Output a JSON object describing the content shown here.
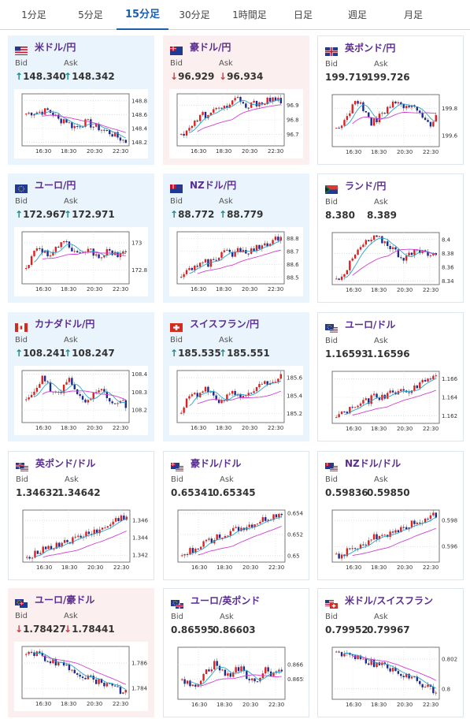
{
  "tabs": [
    "1分足",
    "5分足",
    "15分足",
    "30分足",
    "1時間足",
    "日足",
    "週足",
    "月足"
  ],
  "active_tab": 2,
  "labels": {
    "bid": "Bid",
    "ask": "Ask"
  },
  "colors": {
    "up_card": "#eaf4fc",
    "down_card": "#fcefef",
    "up_arrow": "#1a8a8a",
    "down_arrow": "#d23c3c",
    "candle_up": "#e02020",
    "candle_down": "#1a2a90",
    "ma_short": "#29a3c8",
    "ma_long": "#d040d0"
  },
  "cards": [
    {
      "pair": "米ドル/円",
      "flag": "us",
      "dir": "up",
      "bid_arrow": "↑",
      "ask_arrow": "↑",
      "bid": "148.340",
      "ask": "148.342",
      "chart_data": {
        "type": "candlestick",
        "x_ticks": [
          "16:30",
          "18:30",
          "20:30",
          "22:30"
        ],
        "y_ticks": [
          "148.8",
          "148.6",
          "148.4",
          "148.2"
        ],
        "ylim": [
          148.15,
          148.9
        ],
        "shape": [
          0.62,
          0.64,
          0.65,
          0.66,
          0.68,
          0.6,
          0.48,
          0.52,
          0.4,
          0.36,
          0.42,
          0.46,
          0.38,
          0.35,
          0.3,
          0.26,
          0.2,
          0.14,
          0.08
        ]
      }
    },
    {
      "pair": "豪ドル/円",
      "flag": "au",
      "dir": "down",
      "bid_arrow": "↓",
      "ask_arrow": "↓",
      "bid": "96.929",
      "ask": "96.934",
      "chart_data": {
        "type": "candlestick",
        "x_ticks": [
          "16:30",
          "18:30",
          "20:30",
          "22:30"
        ],
        "y_ticks": [
          "96.9",
          "96.8",
          "96.7"
        ],
        "ylim": [
          96.62,
          96.98
        ],
        "shape": [
          0.2,
          0.32,
          0.4,
          0.5,
          0.62,
          0.55,
          0.68,
          0.8,
          0.72,
          0.84,
          0.9,
          0.78,
          0.74,
          0.8,
          0.84,
          0.86,
          0.88,
          0.85,
          0.87
        ]
      }
    },
    {
      "pair": "英ポンド/円",
      "flag": "gb",
      "dir": "neutral",
      "bid_arrow": "",
      "ask_arrow": "",
      "bid": "199.719",
      "ask": "199.726",
      "chart_data": {
        "type": "candlestick",
        "x_ticks": [
          "16:30",
          "18:30",
          "20:30",
          "22:30"
        ],
        "y_ticks": [
          "199.8",
          "199.6"
        ],
        "ylim": [
          199.52,
          199.9
        ],
        "shape": [
          0.3,
          0.4,
          0.62,
          0.8,
          0.9,
          0.7,
          0.45,
          0.5,
          0.62,
          0.7,
          0.8,
          0.85,
          0.78,
          0.72,
          0.82,
          0.6,
          0.5,
          0.45,
          0.55
        ]
      }
    },
    {
      "pair": "ユーロ/円",
      "flag": "eu",
      "dir": "up",
      "bid_arrow": "↑",
      "ask_arrow": "↑",
      "bid": "172.967",
      "ask": "172.971",
      "chart_data": {
        "type": "candlestick",
        "x_ticks": [
          "16:30",
          "18:30",
          "20:30",
          "22:30"
        ],
        "y_ticks": [
          "173",
          "172.8"
        ],
        "ylim": [
          172.7,
          173.08
        ],
        "shape": [
          0.35,
          0.5,
          0.72,
          0.66,
          0.55,
          0.6,
          0.78,
          0.82,
          0.6,
          0.55,
          0.52,
          0.7,
          0.6,
          0.5,
          0.58,
          0.62,
          0.55,
          0.6,
          0.58
        ]
      }
    },
    {
      "pair": "NZドル/円",
      "flag": "nz",
      "dir": "up",
      "bid_arrow": "↑",
      "ask_arrow": "↑",
      "bid": "88.772",
      "ask": "88.779",
      "chart_data": {
        "type": "candlestick",
        "x_ticks": [
          "16:30",
          "18:30",
          "20:30",
          "22:30"
        ],
        "y_ticks": [
          "88.8",
          "88.7",
          "88.6",
          "88.5"
        ],
        "ylim": [
          88.45,
          88.85
        ],
        "shape": [
          0.15,
          0.2,
          0.3,
          0.36,
          0.42,
          0.38,
          0.5,
          0.55,
          0.6,
          0.56,
          0.64,
          0.7,
          0.62,
          0.68,
          0.72,
          0.78,
          0.8,
          0.86,
          0.9
        ]
      }
    },
    {
      "pair": "ランド/円",
      "flag": "za",
      "dir": "neutral",
      "bid_arrow": "",
      "ask_arrow": "",
      "bid": "8.380",
      "ask": "8.389",
      "chart_data": {
        "type": "candlestick",
        "x_ticks": [
          "16:30",
          "18:30",
          "20:30",
          "22:30"
        ],
        "y_ticks": [
          "8.4",
          "8.38",
          "8.36",
          "8.34"
        ],
        "ylim": [
          8.335,
          8.41
        ],
        "shape": [
          0.1,
          0.2,
          0.32,
          0.5,
          0.66,
          0.78,
          0.84,
          0.9,
          0.86,
          0.8,
          0.72,
          0.6,
          0.52,
          0.56,
          0.6,
          0.64,
          0.62,
          0.6,
          0.6
        ]
      }
    },
    {
      "pair": "カナダドル/円",
      "flag": "ca",
      "dir": "up",
      "bid_arrow": "↑",
      "ask_arrow": "↑",
      "bid": "108.241",
      "ask": "108.247",
      "chart_data": {
        "type": "candlestick",
        "x_ticks": [
          "16:30",
          "18:30",
          "20:30",
          "22:30"
        ],
        "y_ticks": [
          "108.4",
          "108.3",
          "108.2"
        ],
        "ylim": [
          108.13,
          108.42
        ],
        "shape": [
          0.4,
          0.55,
          0.72,
          0.85,
          0.7,
          0.5,
          0.58,
          0.75,
          0.8,
          0.6,
          0.45,
          0.35,
          0.5,
          0.62,
          0.55,
          0.48,
          0.3,
          0.4,
          0.34
        ]
      }
    },
    {
      "pair": "スイスフラン/円",
      "flag": "ch",
      "dir": "up",
      "bid_arrow": "↑",
      "ask_arrow": "↑",
      "bid": "185.535",
      "ask": "185.551",
      "chart_data": {
        "type": "candlestick",
        "x_ticks": [
          "16:30",
          "18:30",
          "20:30",
          "22:30"
        ],
        "y_ticks": [
          "185.6",
          "185.4",
          "185.2"
        ],
        "ylim": [
          185.1,
          185.68
        ],
        "shape": [
          0.25,
          0.45,
          0.6,
          0.52,
          0.66,
          0.58,
          0.45,
          0.4,
          0.5,
          0.62,
          0.55,
          0.48,
          0.5,
          0.62,
          0.7,
          0.74,
          0.8,
          0.85,
          0.88
        ]
      }
    },
    {
      "pair": "ユーロ/ドル",
      "flag": "eu-us",
      "dir": "neutral",
      "bid_arrow": "",
      "ask_arrow": "",
      "bid": "1.16593",
      "ask": "1.16596",
      "chart_data": {
        "type": "candlestick",
        "x_ticks": [
          "16:30",
          "18:30",
          "20:30",
          "22:30"
        ],
        "y_ticks": [
          "1.166",
          "1.164",
          "1.162"
        ],
        "ylim": [
          1.1612,
          1.1668
        ],
        "shape": [
          0.15,
          0.18,
          0.25,
          0.3,
          0.36,
          0.4,
          0.45,
          0.52,
          0.5,
          0.55,
          0.6,
          0.62,
          0.58,
          0.64,
          0.7,
          0.76,
          0.8,
          0.86,
          0.9
        ]
      }
    },
    {
      "pair": "英ポンド/ドル",
      "flag": "gb-us",
      "dir": "neutral",
      "bid_arrow": "",
      "ask_arrow": "",
      "bid": "1.34632",
      "ask": "1.34642",
      "chart_data": {
        "type": "candlestick",
        "x_ticks": [
          "16:30",
          "18:30",
          "20:30",
          "22:30"
        ],
        "y_ticks": [
          "1.346",
          "1.344",
          "1.342"
        ],
        "ylim": [
          1.3412,
          1.3472
        ],
        "shape": [
          0.1,
          0.15,
          0.22,
          0.25,
          0.3,
          0.28,
          0.35,
          0.42,
          0.4,
          0.45,
          0.5,
          0.55,
          0.6,
          0.58,
          0.65,
          0.72,
          0.8,
          0.85,
          0.88
        ]
      }
    },
    {
      "pair": "豪ドル/ドル",
      "flag": "au-us",
      "dir": "neutral",
      "bid_arrow": "",
      "ask_arrow": "",
      "bid": "0.65341",
      "ask": "0.65345",
      "chart_data": {
        "type": "candlestick",
        "x_ticks": [
          "16:30",
          "18:30",
          "20:30",
          "22:30"
        ],
        "y_ticks": [
          "0.654",
          "0.652",
          "0.65"
        ],
        "ylim": [
          0.6494,
          0.6543
        ],
        "shape": [
          0.1,
          0.18,
          0.25,
          0.3,
          0.36,
          0.42,
          0.45,
          0.5,
          0.55,
          0.58,
          0.62,
          0.65,
          0.7,
          0.72,
          0.78,
          0.82,
          0.86,
          0.9,
          0.94
        ]
      }
    },
    {
      "pair": "NZドル/ドル",
      "flag": "nz-us",
      "dir": "neutral",
      "bid_arrow": "",
      "ask_arrow": "",
      "bid": "0.59836",
      "ask": "0.59850",
      "chart_data": {
        "type": "candlestick",
        "x_ticks": [
          "16:30",
          "18:30",
          "20:30",
          "22:30"
        ],
        "y_ticks": [
          "0.598",
          "0.596"
        ],
        "ylim": [
          0.5948,
          0.5988
        ],
        "shape": [
          0.1,
          0.15,
          0.2,
          0.28,
          0.32,
          0.38,
          0.42,
          0.48,
          0.55,
          0.52,
          0.6,
          0.64,
          0.66,
          0.7,
          0.75,
          0.8,
          0.84,
          0.88,
          0.92
        ]
      }
    },
    {
      "pair": "ユーロ/豪ドル",
      "flag": "eu-au",
      "dir": "down",
      "bid_arrow": "↓",
      "ask_arrow": "↓",
      "bid": "1.78427",
      "ask": "1.78441",
      "chart_data": {
        "type": "candlestick",
        "x_ticks": [
          "16:30",
          "18:30",
          "20:30",
          "22:30"
        ],
        "y_ticks": [
          "1.786",
          "1.784"
        ],
        "ylim": [
          1.7832,
          1.7873
        ],
        "shape": [
          0.9,
          0.86,
          0.84,
          0.78,
          0.74,
          0.72,
          0.66,
          0.6,
          0.56,
          0.5,
          0.46,
          0.4,
          0.38,
          0.32,
          0.28,
          0.24,
          0.2,
          0.16,
          0.12
        ]
      }
    },
    {
      "pair": "ユーロ/英ポンド",
      "flag": "eu-gb",
      "dir": "neutral",
      "bid_arrow": "",
      "ask_arrow": "",
      "bid": "0.86595",
      "ask": "0.86603",
      "chart_data": {
        "type": "candlestick",
        "x_ticks": [
          "16:30",
          "18:30",
          "20:30",
          "22:30"
        ],
        "y_ticks": [
          "0.866",
          "0.8655"
        ],
        "ylim": [
          0.8648,
          0.8666
        ],
        "shape": [
          0.4,
          0.3,
          0.22,
          0.35,
          0.5,
          0.6,
          0.7,
          0.55,
          0.45,
          0.5,
          0.62,
          0.55,
          0.4,
          0.3,
          0.45,
          0.6,
          0.5,
          0.55,
          0.52
        ]
      }
    },
    {
      "pair": "米ドル/スイスフラン",
      "flag": "us-ch",
      "dir": "neutral",
      "bid_arrow": "",
      "ask_arrow": "",
      "bid": "0.79952",
      "ask": "0.79967",
      "chart_data": {
        "type": "candlestick",
        "x_ticks": [
          "16:30",
          "18:30",
          "20:30",
          "22:30"
        ],
        "y_ticks": [
          "0.802",
          "0.8"
        ],
        "ylim": [
          0.7993,
          0.8028
        ],
        "shape": [
          0.9,
          0.88,
          0.84,
          0.86,
          0.8,
          0.76,
          0.72,
          0.68,
          0.66,
          0.6,
          0.55,
          0.5,
          0.46,
          0.42,
          0.38,
          0.3,
          0.26,
          0.2,
          0.14
        ]
      }
    }
  ]
}
